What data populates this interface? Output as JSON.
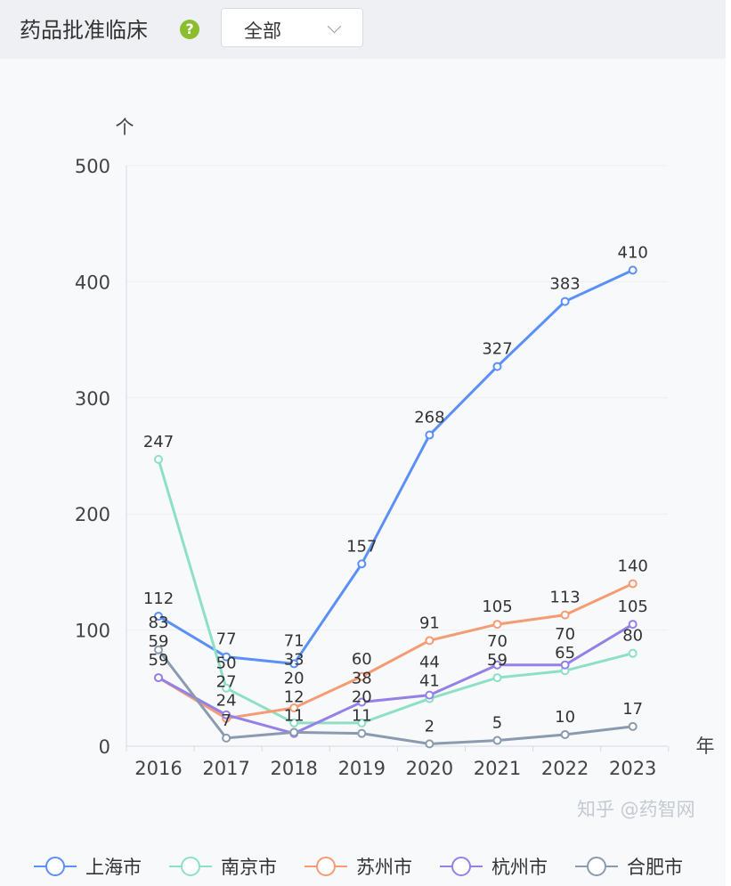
{
  "header": {
    "title": "药品批准临床",
    "help_icon": "question-circle-icon",
    "filter_value": "全部"
  },
  "watermark": "知乎 @药智网",
  "chart_data": {
    "type": "line",
    "ylabel": "个",
    "xlabel": "年",
    "ylim": [
      0,
      500
    ],
    "yticks": [
      "0",
      "100",
      "200",
      "300",
      "400",
      "500"
    ],
    "categories": [
      "2016",
      "2017",
      "2018",
      "2019",
      "2020",
      "2021",
      "2022",
      "2023"
    ],
    "grid": true,
    "legend_position": "bottom",
    "series": [
      {
        "name": "上海市",
        "color": "#5b8ff9",
        "values": [
          112,
          77,
          71,
          157,
          268,
          327,
          383,
          410
        ]
      },
      {
        "name": "南京市",
        "color": "#8ee0c4",
        "values": [
          247,
          50,
          20,
          20,
          41,
          59,
          65,
          80
        ]
      },
      {
        "name": "苏州市",
        "color": "#f59c74",
        "values": [
          59,
          24,
          33,
          60,
          91,
          105,
          113,
          140
        ]
      },
      {
        "name": "杭州市",
        "color": "#9580e8",
        "values": [
          59,
          27,
          11,
          38,
          44,
          70,
          70,
          105
        ]
      },
      {
        "name": "合肥市",
        "color": "#8a9bb0",
        "values": [
          83,
          7,
          12,
          11,
          2,
          5,
          10,
          17
        ]
      }
    ]
  }
}
